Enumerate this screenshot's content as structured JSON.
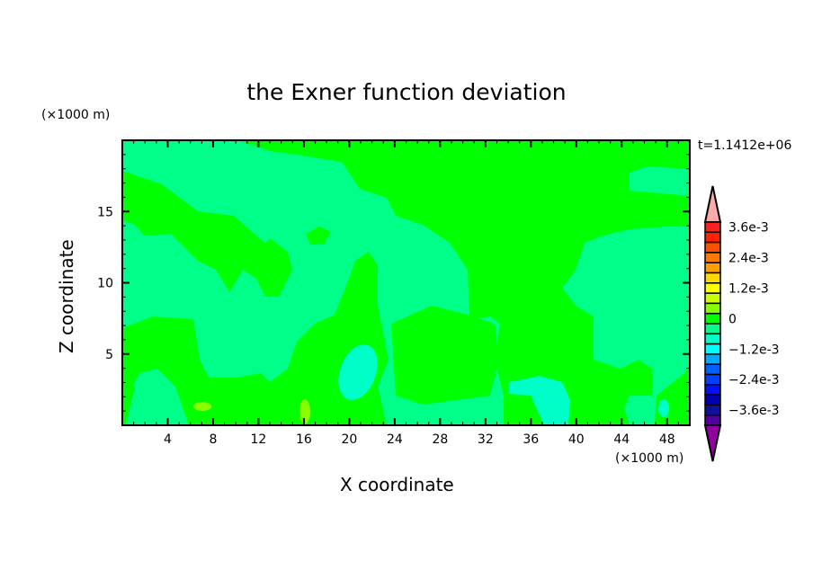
{
  "chart_data": {
    "type": "heatmap",
    "subtype": "filled-contour",
    "title": "the Exner function deviation",
    "xlabel": "X coordinate",
    "ylabel": "Z coordinate",
    "x_unit_label": "(×1000 m)",
    "y_unit_label": "(×1000 m)",
    "time_label": "t=1.1412e+06",
    "xlim": [
      0,
      50
    ],
    "ylim": [
      0,
      20
    ],
    "xticks": [
      4,
      8,
      12,
      16,
      20,
      24,
      28,
      32,
      36,
      40,
      44,
      48
    ],
    "yticks": [
      5,
      10,
      15
    ],
    "colorbar": {
      "labels": [
        "3.6e-3",
        "2.4e-3",
        "1.2e-3",
        "0",
        "−1.2e-3",
        "−2.4e-3",
        "−3.6e-3"
      ],
      "label_values": [
        0.0036,
        0.0024,
        0.0012,
        0,
        -0.0012,
        -0.0024,
        -0.0036
      ],
      "level_step": 0.0004,
      "colors_top_to_bottom": [
        "#ff2020",
        "#ff2000",
        "#ff5000",
        "#ff7800",
        "#ffa000",
        "#ffd800",
        "#ffff00",
        "#ccff00",
        "#88ff00",
        "#00ff00",
        "#00ff88",
        "#00ffc8",
        "#00ffff",
        "#00aaff",
        "#0060ff",
        "#0040ff",
        "#0010ff",
        "#0000b0",
        "#1010a0",
        "#5000a0"
      ],
      "over_color": "#ffaaaa",
      "under_color": "#9000a0"
    },
    "field_colors": {
      "background": "#00ff88",
      "positive_small": "#00ff00",
      "negative_small": "#00ffc8",
      "positive_medium": "#88ff00"
    }
  }
}
